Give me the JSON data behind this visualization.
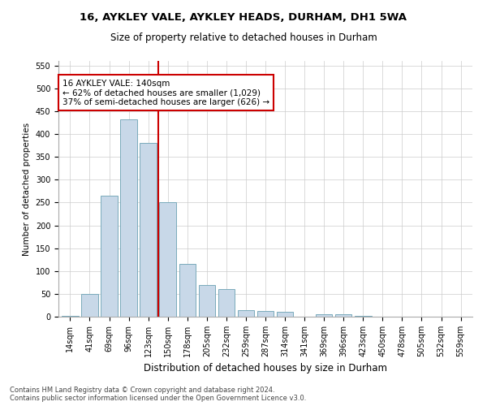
{
  "title_line1": "16, AYKLEY VALE, AYKLEY HEADS, DURHAM, DH1 5WA",
  "title_line2": "Size of property relative to detached houses in Durham",
  "xlabel": "Distribution of detached houses by size in Durham",
  "ylabel": "Number of detached properties",
  "footnote": "Contains HM Land Registry data © Crown copyright and database right 2024.\nContains public sector information licensed under the Open Government Licence v3.0.",
  "bar_categories": [
    "14sqm",
    "41sqm",
    "69sqm",
    "96sqm",
    "123sqm",
    "150sqm",
    "178sqm",
    "205sqm",
    "232sqm",
    "259sqm",
    "287sqm",
    "314sqm",
    "341sqm",
    "369sqm",
    "396sqm",
    "423sqm",
    "450sqm",
    "478sqm",
    "505sqm",
    "532sqm",
    "559sqm"
  ],
  "bar_values": [
    2,
    50,
    265,
    432,
    381,
    250,
    115,
    70,
    60,
    15,
    13,
    10,
    0,
    6,
    5,
    1,
    0,
    0,
    0,
    0,
    0
  ],
  "bar_color": "#c8d8e8",
  "bar_edge_color": "#7aaabb",
  "vline_x": 4.5,
  "vline_color": "#cc0000",
  "annotation_text": "16 AYKLEY VALE: 140sqm\n← 62% of detached houses are smaller (1,029)\n37% of semi-detached houses are larger (626) →",
  "annotation_box_color": "white",
  "annotation_box_edge_color": "#cc0000",
  "ylim": [
    0,
    560
  ],
  "yticks": [
    0,
    50,
    100,
    150,
    200,
    250,
    300,
    350,
    400,
    450,
    500,
    550
  ],
  "bg_color": "white",
  "grid_color": "#cccccc",
  "title_fontsize": 9.5,
  "subtitle_fontsize": 8.5,
  "xlabel_fontsize": 8.5,
  "ylabel_fontsize": 7.5,
  "tick_fontsize": 7,
  "annot_fontsize": 7.5,
  "footnote_fontsize": 6
}
